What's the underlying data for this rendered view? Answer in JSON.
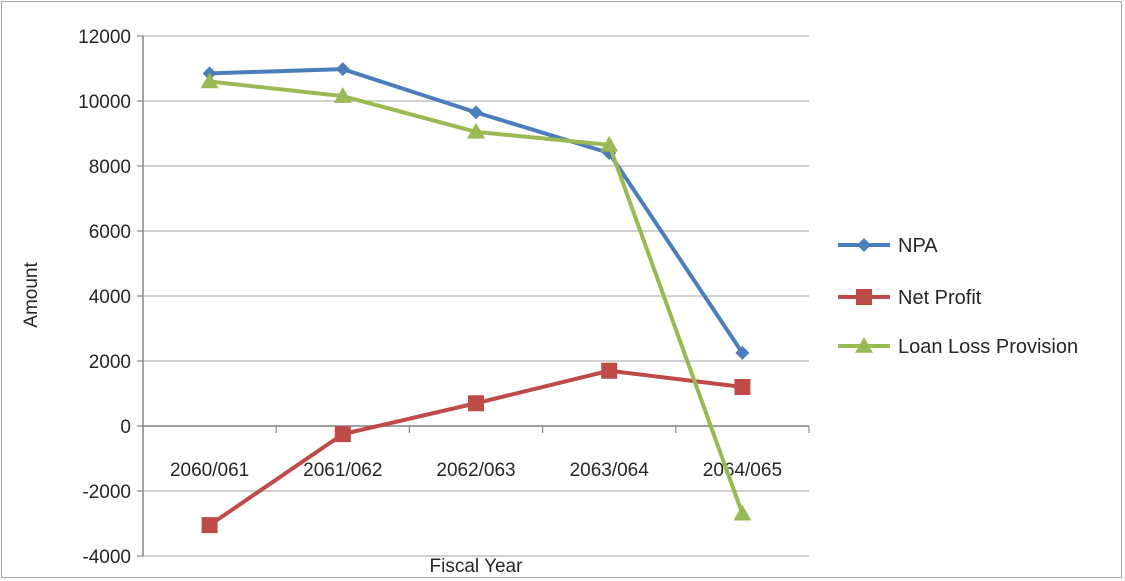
{
  "chart_data": {
    "type": "line",
    "categories": [
      "2060/061",
      "2061/062",
      "2062/063",
      "2063/064",
      "2064/065"
    ],
    "series": [
      {
        "name": "NPA",
        "values": [
          10850,
          10980,
          9650,
          8400,
          2250
        ],
        "color": "#4a7ebb",
        "marker": "diamond"
      },
      {
        "name": "Net Profit",
        "values": [
          -3050,
          -250,
          700,
          1700,
          1200
        ],
        "color": "#be4b48",
        "marker": "square"
      },
      {
        "name": "Loan Loss Provision",
        "values": [
          10600,
          10150,
          9050,
          8650,
          -2700
        ],
        "color": "#98b954",
        "marker": "triangle"
      }
    ],
    "xlabel": "Fiscal Year",
    "ylabel": "Amount",
    "ylim": [
      -4000,
      12000
    ],
    "yticks": [
      "-4000",
      "-2000",
      "0",
      "2000",
      "4000",
      "6000",
      "8000",
      "10000",
      "12000"
    ],
    "grid": true,
    "legend_position": "right"
  }
}
